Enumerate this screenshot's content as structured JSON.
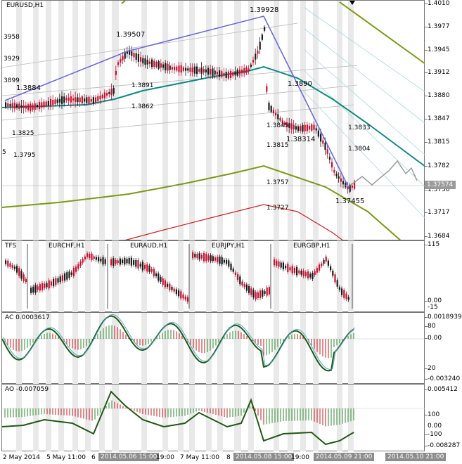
{
  "main": {
    "title": "EURUSD,H1",
    "price_labels": [
      "1.4010",
      "1.3977",
      "1.3945",
      "1.3912",
      "1.3880",
      "1.3847",
      "1.3815",
      "1.3782",
      "1.3750",
      "1.3717",
      "1.3684"
    ],
    "current_price": "1.37574",
    "annotations": {
      "high": "1.39928",
      "h2": "1.39507",
      "low": "1.37455",
      "mid": "1.38314",
      "a1": "1.3884",
      "a2": "1.3891",
      "a3": "1.3862",
      "a4": "1.3890",
      "a5": "1.3845",
      "a6": "1.3815",
      "a7": "1.3833",
      "a8": "1.3804",
      "a9": "1.3757",
      "a10": "1.3727",
      "l1": "3958",
      "l2": "3929",
      "l3": "3899",
      "l4": "1.3825",
      "l5": "1.3795",
      "l6": "5"
    }
  },
  "tfs": {
    "title": "TFS",
    "pairs": [
      "EURCHF,H1",
      "EURAUD,H1",
      "EURJPY,H1",
      "EURGBP,H1"
    ],
    "axis": [
      "115",
      "0.00",
      "-15"
    ]
  },
  "ac": {
    "title": "AC 0.0003617",
    "axis": [
      "0.0018939",
      "80",
      "0.00",
      "20",
      "-0.003240"
    ]
  },
  "ao": {
    "title": "AO -0.007059",
    "axis": [
      "0.005412",
      "100",
      "0.00",
      "-100",
      "-0.008287"
    ]
  },
  "xaxis": {
    "labels": [
      "2 May 2014",
      "5 May 11:00",
      "6",
      "2014.05.06 15:00",
      "19:00",
      "7 May 11:00",
      "8",
      "2014.05.08 15:00",
      "19:00",
      "2014.05.09 21:00",
      "2014.05.10 21:00"
    ]
  },
  "colors": {
    "candle_bull": "#1a1a1a",
    "candle_bear": "#c8102e",
    "teal_ma": "#0a8a88",
    "olive": "#7b9a12",
    "red_line": "#d62020",
    "trend": "#6a6ae0",
    "ac_up": "#2a8a2a",
    "ac_down": "#c01818"
  }
}
